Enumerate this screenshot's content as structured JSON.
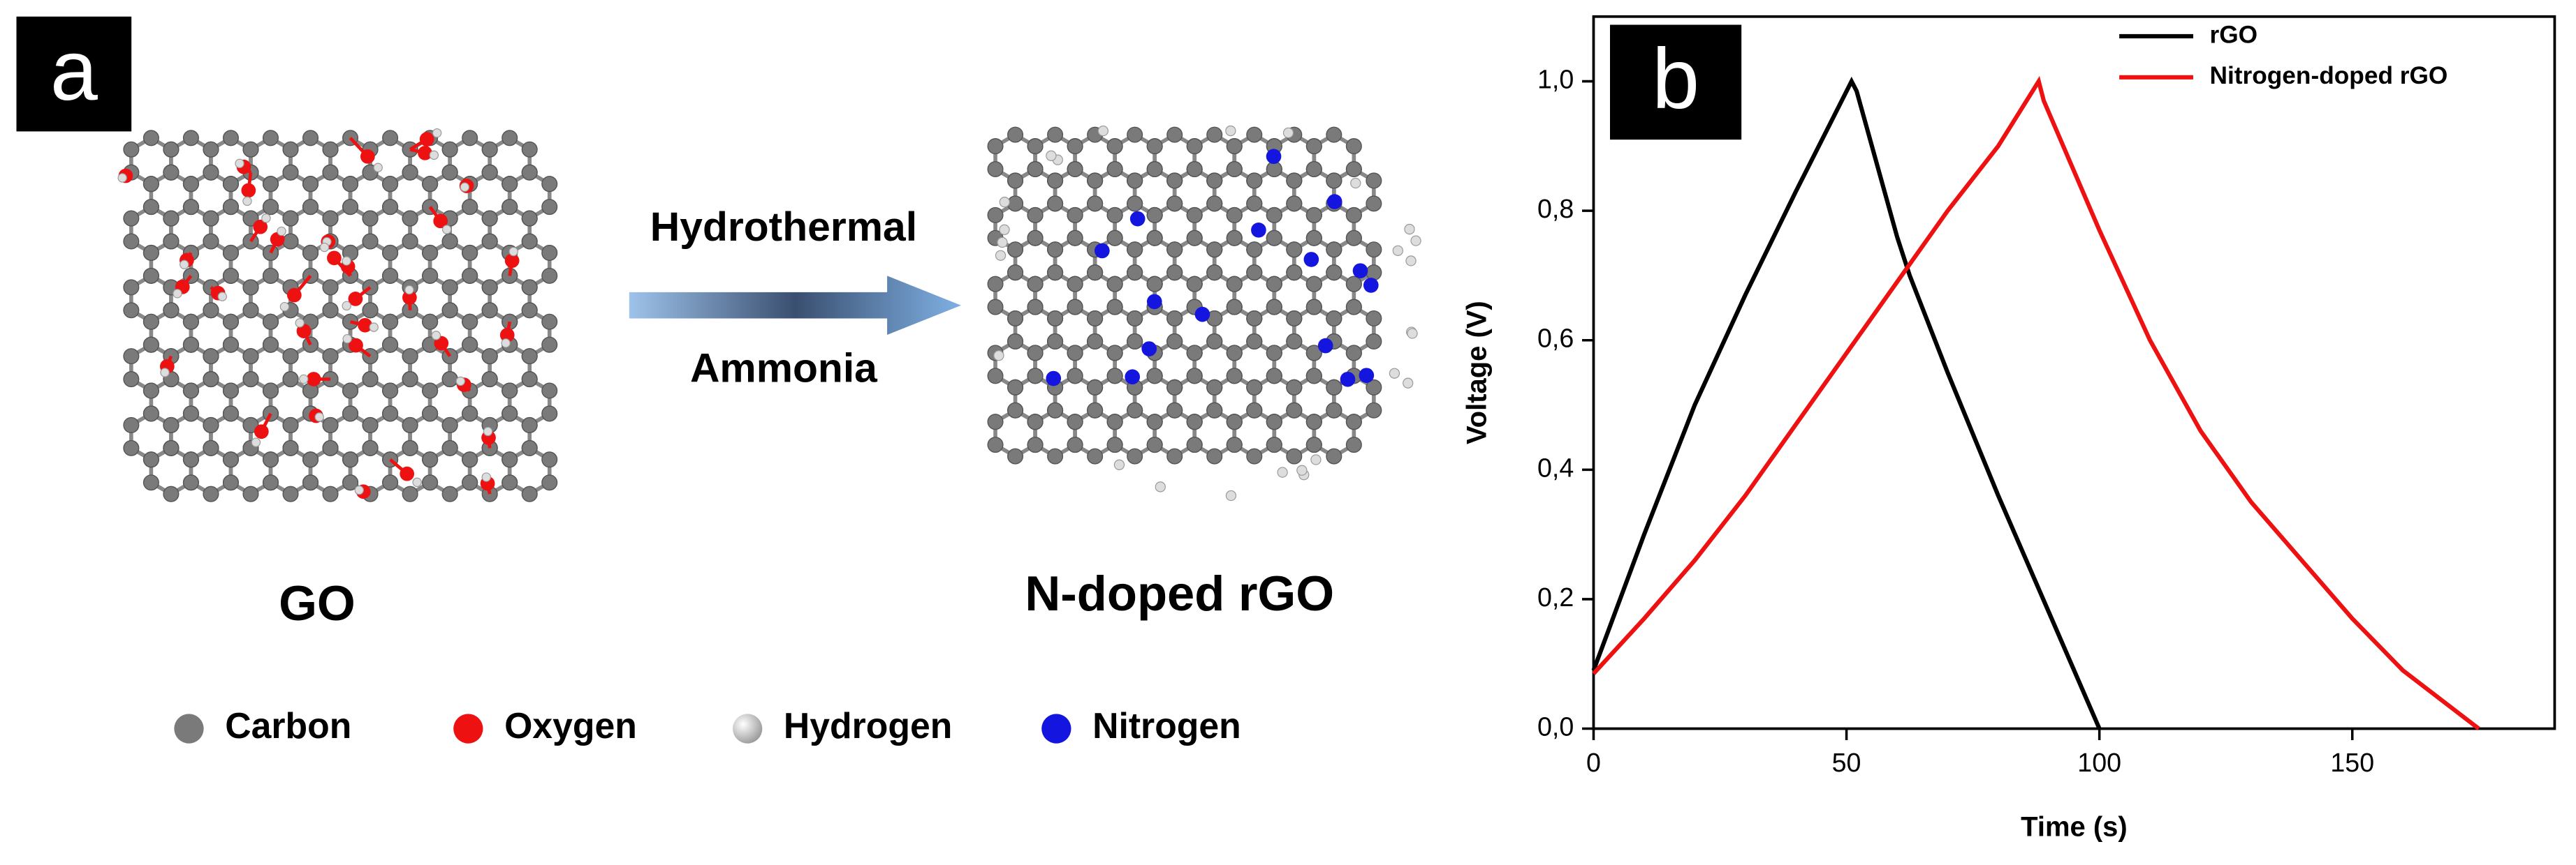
{
  "diagram": {
    "panel_label": "a",
    "step_top": "Hydrothermal",
    "step_bottom": "Ammonia",
    "left_label": "GO",
    "right_label": "N-doped rGO",
    "legend": [
      {
        "label": "Carbon",
        "color": "#7a7a7a"
      },
      {
        "label": "Oxygen",
        "color": "#ee1111"
      },
      {
        "label": "Hydrogen",
        "color": "#cfcfcf"
      },
      {
        "label": "Nitrogen",
        "color": "#1515e0"
      }
    ]
  },
  "chart_data": {
    "type": "line",
    "panel_label": "b",
    "xlabel": "Time (s)",
    "ylabel": "Voltage (V)",
    "xlim": [
      0,
      190
    ],
    "ylim": [
      0,
      1.1
    ],
    "xticks": [
      0,
      50,
      100,
      150
    ],
    "yticks": [
      {
        "value": 0,
        "label": "0,0"
      },
      {
        "value": 0.2,
        "label": "0,2"
      },
      {
        "value": 0.4,
        "label": "0,4"
      },
      {
        "value": 0.6,
        "label": "0,6"
      },
      {
        "value": 0.8,
        "label": "0,8"
      },
      {
        "value": 1.0,
        "label": "1,0"
      }
    ],
    "legend": "upper right",
    "series": [
      {
        "name": "rGO",
        "color": "#000000",
        "x": [
          0,
          10,
          20,
          30,
          40,
          51,
          52,
          60,
          62.5,
          70,
          80,
          90,
          100
        ],
        "values": [
          0.09,
          0.3,
          0.5,
          0.67,
          0.83,
          1.0,
          0.985,
          0.76,
          0.7,
          0.55,
          0.36,
          0.18,
          0.0
        ]
      },
      {
        "name": "Nitrogen-doped rGO",
        "color": "#ee1111",
        "x": [
          0,
          10,
          20,
          30,
          40,
          50,
          60,
          70,
          80,
          88,
          89,
          100,
          110,
          120,
          130,
          140,
          150,
          160,
          175
        ],
        "values": [
          0.085,
          0.17,
          0.26,
          0.36,
          0.47,
          0.58,
          0.69,
          0.8,
          0.9,
          1.0,
          0.97,
          0.77,
          0.6,
          0.46,
          0.35,
          0.26,
          0.17,
          0.09,
          0.0
        ]
      }
    ]
  }
}
